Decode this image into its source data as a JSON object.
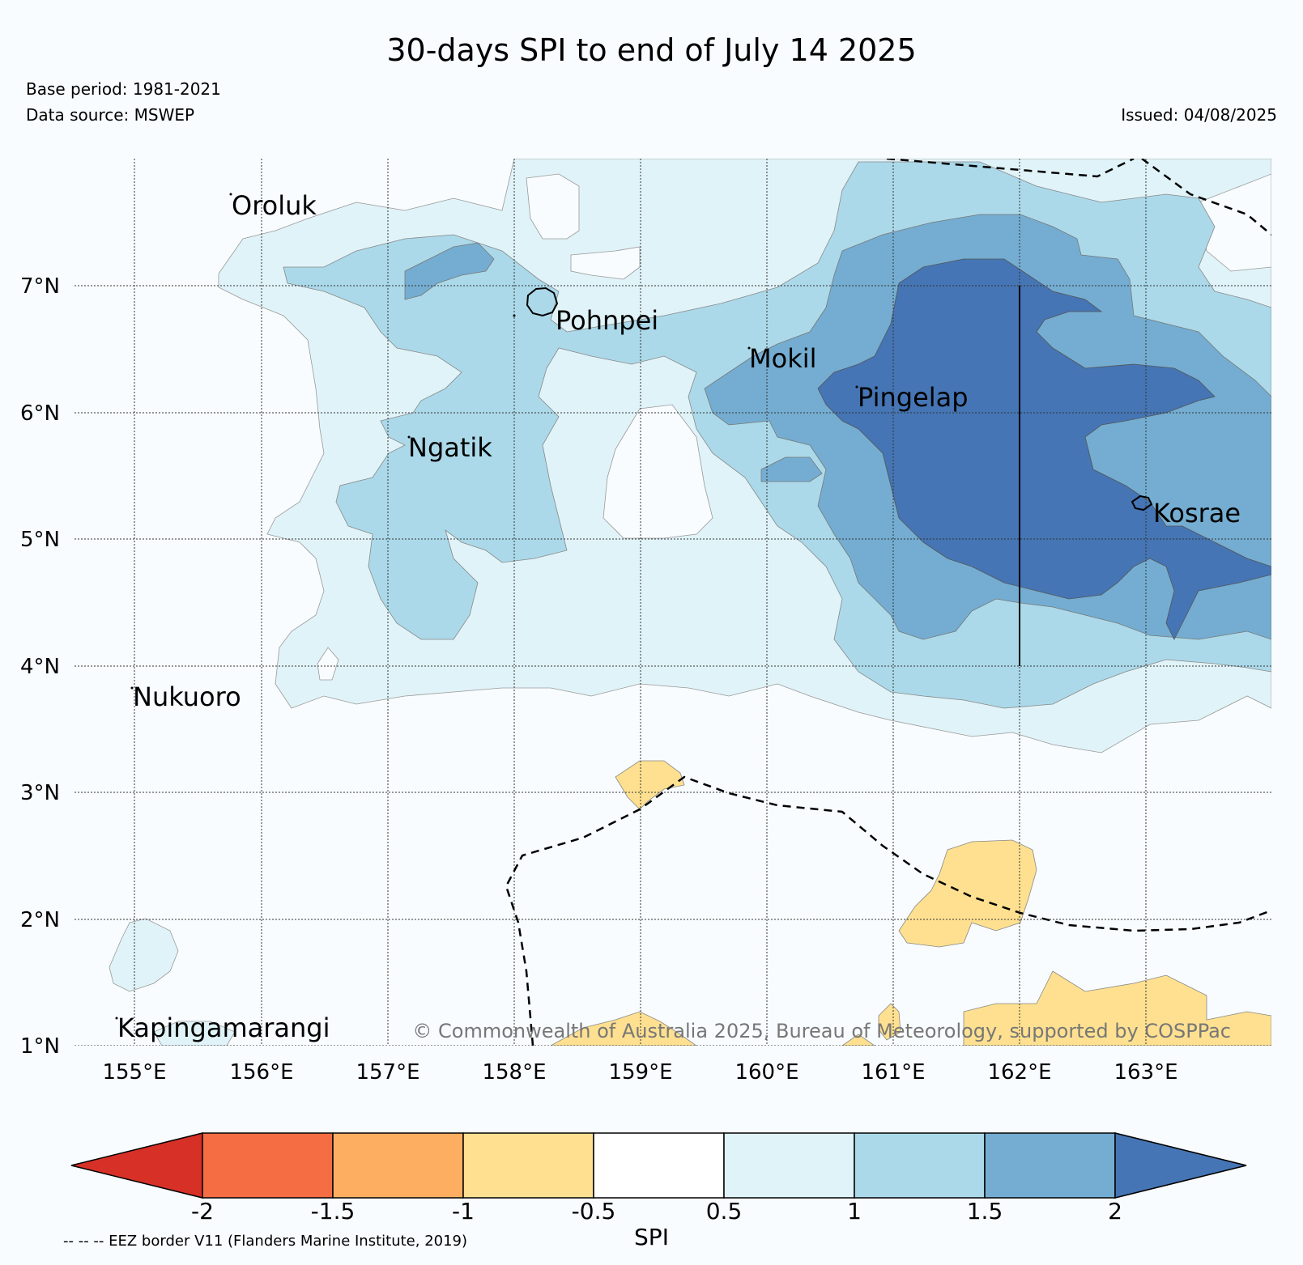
{
  "header": {
    "title": "30-days SPI to end of July 14 2025",
    "base_period": "Base period: 1981-2021",
    "data_source": "Data source: MSWEP",
    "issued": "Issued: 04/08/2025"
  },
  "map": {
    "lat_labels": [
      "7°N",
      "6°N",
      "5°N",
      "4°N",
      "3°N",
      "2°N",
      "1°N"
    ],
    "lon_labels": [
      "155°E",
      "156°E",
      "157°E",
      "158°E",
      "159°E",
      "160°E",
      "161°E",
      "162°E",
      "163°E"
    ],
    "places": {
      "oroluk": "Oroluk",
      "pohnpei": "Pohnpei",
      "mokil": "Mokil",
      "pingelap": "Pingelap",
      "ngatik": "Ngatik",
      "kosrae": "Kosrae",
      "nukuoro": "Nukuoro",
      "kapingamarangi": "Kapingamarangi"
    },
    "copyright": "© Commonwealth of Australia 2025, Bureau of Meteorology, supported by COSPPac",
    "eez_border": "dashed",
    "grid": "dotted"
  },
  "colorbar": {
    "label": "SPI",
    "ticks": [
      "-2",
      "-1.5",
      "-1",
      "-0.5",
      "0.5",
      "1",
      "1.5",
      "2"
    ],
    "colors": [
      "#d73027",
      "#f46d43",
      "#fdae61",
      "#fee090",
      "#ffffff",
      "#e0f3f8",
      "#abd9e9",
      "#74add1",
      "#4575b4"
    ],
    "note": "-- -- -- EEZ border V11 (Flanders Marine Institute, 2019)"
  }
}
